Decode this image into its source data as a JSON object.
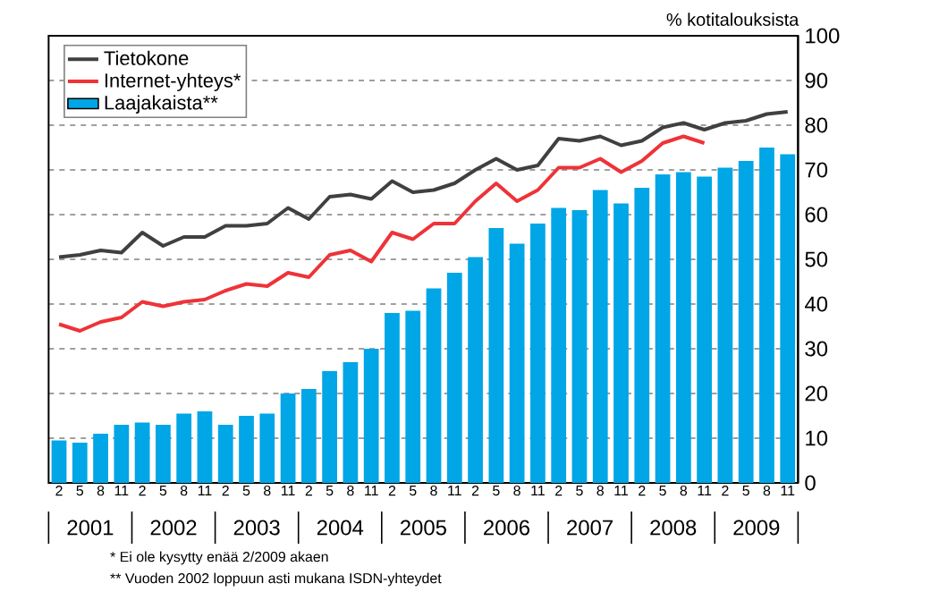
{
  "chart_data": {
    "type": "bar",
    "ylabel": "% kotitalouksista",
    "categories": [
      "2",
      "5",
      "8",
      "11",
      "2",
      "5",
      "8",
      "11",
      "2",
      "5",
      "8",
      "11",
      "2",
      "5",
      "8",
      "11",
      "2",
      "5",
      "8",
      "11",
      "2",
      "5",
      "8",
      "11",
      "2",
      "5",
      "8",
      "11",
      "2",
      "5",
      "8",
      "11",
      "2",
      "5",
      "8",
      "11"
    ],
    "series": [
      {
        "name": "Tietokone",
        "type": "line",
        "color": "#404040",
        "values": [
          50.5,
          51,
          52,
          51.5,
          56,
          53,
          55,
          55,
          57.5,
          57.5,
          58,
          61.5,
          59,
          64,
          64.5,
          63.5,
          67.5,
          65,
          65.5,
          67,
          70,
          72.5,
          70,
          71,
          77,
          76.5,
          77.5,
          75.5,
          76.5,
          79.5,
          80.5,
          79,
          80.5,
          81,
          82.5,
          83
        ]
      },
      {
        "name": "Internet-yhteys*",
        "type": "line",
        "color": "#ee3338",
        "values": [
          35.5,
          34,
          36,
          37,
          40.5,
          39.5,
          40.5,
          41,
          43,
          44.5,
          44,
          47,
          46,
          51,
          52,
          49.5,
          56,
          54.5,
          58,
          58,
          63,
          67,
          63,
          65.5,
          70.5,
          70.5,
          72.5,
          69.5,
          72,
          76,
          77.5,
          76,
          null,
          null,
          null,
          null
        ]
      },
      {
        "name": "Laajakaista**",
        "color": "#00a6e6",
        "values": [
          9.5,
          9,
          11,
          13,
          13.5,
          13,
          15.5,
          16,
          13,
          15,
          15.5,
          20,
          21,
          25,
          27,
          30,
          38,
          38.5,
          43.5,
          47,
          50.5,
          57,
          53.5,
          58,
          61.5,
          61,
          65.5,
          62.5,
          66,
          69,
          69.5,
          68.5,
          70.5,
          72,
          75,
          73.5
        ]
      }
    ],
    "ylim": [
      0,
      100
    ],
    "yticks": [
      0,
      10,
      20,
      30,
      40,
      50,
      60,
      70,
      80,
      90,
      100
    ],
    "grid": "y",
    "legend": "top left",
    "annotations": [
      "2001",
      "2002",
      "2003",
      "2004",
      "2005",
      "2006",
      "2007",
      "2008",
      "2009",
      "* Ei ole kysytty enää 2/2009 akaen",
      "** Vuoden 2002 loppuun asti mukana ISDN-yhteydet"
    ]
  }
}
